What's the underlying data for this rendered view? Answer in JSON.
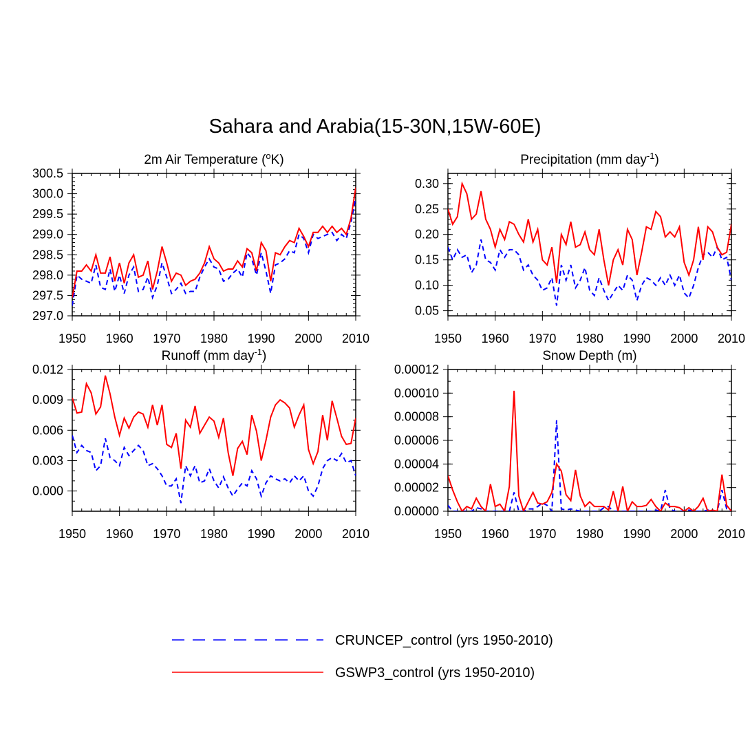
{
  "title": "Sahara and Arabia(15-30N,15W-60E)",
  "colors": {
    "cruncep": "#0000ff",
    "gswp3": "#ff0000",
    "axis": "#000000"
  },
  "legend": [
    {
      "label": "CRUNCEP_control (yrs 1950-2010)",
      "style": "dashed",
      "color": "#0000ff"
    },
    {
      "label": "GSWP3_control (yrs 1950-2010)",
      "style": "solid",
      "color": "#ff0000"
    }
  ],
  "chart_data": [
    {
      "type": "line",
      "title": "2m Air Temperature (°K)",
      "title_parts": [
        "2m Air Temperature (",
        "o",
        "K)"
      ],
      "xlim": [
        1950,
        2010
      ],
      "ylim": [
        297.0,
        300.5
      ],
      "xticks": [
        1950,
        1960,
        1970,
        1980,
        1990,
        2000,
        2010
      ],
      "yticks": [
        297.0,
        297.5,
        298.0,
        298.5,
        299.0,
        299.5,
        300.0,
        300.5
      ],
      "ytick_labels": [
        "297.0",
        "297.5",
        "298.0",
        "298.5",
        "299.0",
        "299.5",
        "300.0",
        "300.5"
      ],
      "yminor": 0.1,
      "x_start": 1950,
      "series": [
        {
          "name": "CRUNCEP_control",
          "values": [
            297.25,
            298.0,
            297.9,
            297.85,
            297.8,
            298.25,
            297.7,
            297.65,
            298.15,
            297.6,
            298.0,
            297.55,
            298.0,
            298.2,
            297.6,
            297.65,
            297.95,
            297.45,
            297.75,
            298.3,
            297.95,
            297.55,
            297.65,
            297.8,
            297.55,
            297.6,
            297.6,
            297.95,
            298.2,
            298.4,
            298.2,
            298.15,
            297.85,
            297.9,
            298.05,
            298.15,
            297.95,
            298.55,
            298.4,
            298.0,
            298.55,
            298.1,
            297.55,
            298.25,
            298.3,
            298.4,
            298.6,
            298.55,
            299.0,
            298.9,
            298.55,
            299.0,
            298.9,
            298.95,
            299.0,
            299.05,
            298.85,
            299.0,
            298.9,
            299.3,
            299.9
          ]
        },
        {
          "name": "GSWP3_control",
          "values": [
            297.45,
            298.1,
            298.1,
            298.25,
            298.1,
            298.5,
            298.05,
            298.05,
            298.45,
            297.85,
            298.3,
            297.8,
            298.3,
            298.5,
            297.95,
            298.0,
            298.35,
            297.65,
            298.1,
            298.7,
            298.3,
            297.85,
            298.05,
            298.0,
            297.75,
            297.85,
            297.9,
            298.05,
            298.3,
            298.7,
            298.4,
            298.3,
            298.1,
            298.15,
            298.15,
            298.35,
            298.2,
            298.65,
            298.55,
            298.1,
            298.8,
            298.6,
            297.85,
            298.55,
            298.5,
            298.7,
            298.85,
            298.8,
            299.15,
            298.95,
            298.7,
            299.05,
            299.05,
            299.2,
            299.05,
            299.2,
            299.05,
            299.15,
            299.0,
            299.4,
            300.15
          ]
        }
      ]
    },
    {
      "type": "line",
      "title": "Precipitation (mm day-1)",
      "title_parts": [
        "Precipitation (mm day",
        "-1",
        ")"
      ],
      "xlim": [
        1950,
        2010
      ],
      "ylim": [
        0.04,
        0.32
      ],
      "xticks": [
        1950,
        1960,
        1970,
        1980,
        1990,
        2000,
        2010
      ],
      "yticks": [
        0.05,
        0.1,
        0.15,
        0.2,
        0.25,
        0.3
      ],
      "ytick_labels": [
        "0.05",
        "0.10",
        "0.15",
        "0.20",
        "0.25",
        "0.30"
      ],
      "yminor": 0.01,
      "x_start": 1950,
      "series": [
        {
          "name": "CRUNCEP_control",
          "values": [
            0.175,
            0.15,
            0.17,
            0.155,
            0.16,
            0.125,
            0.14,
            0.19,
            0.15,
            0.145,
            0.13,
            0.17,
            0.155,
            0.17,
            0.17,
            0.16,
            0.13,
            0.14,
            0.12,
            0.11,
            0.09,
            0.095,
            0.115,
            0.06,
            0.14,
            0.11,
            0.14,
            0.095,
            0.11,
            0.135,
            0.09,
            0.08,
            0.115,
            0.09,
            0.07,
            0.085,
            0.1,
            0.09,
            0.12,
            0.11,
            0.07,
            0.1,
            0.115,
            0.11,
            0.1,
            0.115,
            0.1,
            0.12,
            0.1,
            0.12,
            0.085,
            0.075,
            0.1,
            0.135,
            0.16,
            0.165,
            0.155,
            0.175,
            0.15,
            0.155,
            0.11
          ]
        },
        {
          "name": "GSWP3_control",
          "values": [
            0.25,
            0.22,
            0.235,
            0.3,
            0.28,
            0.23,
            0.24,
            0.285,
            0.23,
            0.21,
            0.175,
            0.21,
            0.19,
            0.225,
            0.22,
            0.2,
            0.185,
            0.23,
            0.185,
            0.21,
            0.15,
            0.14,
            0.175,
            0.105,
            0.2,
            0.18,
            0.225,
            0.175,
            0.18,
            0.205,
            0.17,
            0.16,
            0.21,
            0.15,
            0.1,
            0.15,
            0.17,
            0.14,
            0.21,
            0.19,
            0.12,
            0.165,
            0.215,
            0.21,
            0.245,
            0.235,
            0.195,
            0.205,
            0.195,
            0.215,
            0.145,
            0.12,
            0.15,
            0.215,
            0.15,
            0.215,
            0.205,
            0.175,
            0.16,
            0.165,
            0.22
          ]
        }
      ]
    },
    {
      "type": "line",
      "title": "Runoff (mm day-1)",
      "title_parts": [
        "Runoff (mm day",
        "-1",
        ")"
      ],
      "xlim": [
        1950,
        2010
      ],
      "ylim": [
        -0.002,
        0.012
      ],
      "xticks": [
        1950,
        1960,
        1970,
        1980,
        1990,
        2000,
        2010
      ],
      "yticks": [
        0.0,
        0.003,
        0.006,
        0.009,
        0.012
      ],
      "ytick_labels": [
        "0.000",
        "0.003",
        "0.006",
        "0.009",
        "0.012"
      ],
      "yminor": 0.001,
      "x_start": 1950,
      "series": [
        {
          "name": "CRUNCEP_control",
          "values": [
            0.0055,
            0.0038,
            0.0045,
            0.004,
            0.0038,
            0.002,
            0.0025,
            0.0052,
            0.0033,
            0.003,
            0.0025,
            0.0043,
            0.0035,
            0.004,
            0.0045,
            0.004,
            0.0025,
            0.0027,
            0.0022,
            0.0015,
            0.0005,
            0.0005,
            0.0012,
            -0.0012,
            0.0025,
            0.0015,
            0.0025,
            0.0008,
            0.001,
            0.0022,
            0.001,
            0.0003,
            0.0014,
            0.0003,
            -0.0005,
            0.0002,
            0.0008,
            0.0005,
            0.002,
            0.0012,
            -0.0005,
            0.0008,
            0.0015,
            0.0012,
            0.001,
            0.0012,
            0.0008,
            0.0015,
            0.001,
            0.0015,
            0.0,
            -0.0005,
            0.0005,
            0.0022,
            0.003,
            0.0033,
            0.003,
            0.0037,
            0.0028,
            0.003,
            0.0015
          ]
        },
        {
          "name": "GSWP3_control",
          "values": [
            0.0092,
            0.0077,
            0.0078,
            0.0106,
            0.0097,
            0.0076,
            0.0083,
            0.0114,
            0.0096,
            0.0073,
            0.0055,
            0.0072,
            0.0062,
            0.0073,
            0.0078,
            0.0076,
            0.0063,
            0.0085,
            0.0065,
            0.0085,
            0.0046,
            0.0043,
            0.0057,
            0.0022,
            0.007,
            0.0063,
            0.0084,
            0.0057,
            0.0065,
            0.0073,
            0.0069,
            0.0053,
            0.0072,
            0.0038,
            0.0015,
            0.0042,
            0.0049,
            0.0036,
            0.0075,
            0.0059,
            0.003,
            0.005,
            0.0073,
            0.0085,
            0.009,
            0.0087,
            0.0082,
            0.0063,
            0.0075,
            0.0085,
            0.0041,
            0.0027,
            0.0039,
            0.0075,
            0.005,
            0.0089,
            0.0072,
            0.0054,
            0.0046,
            0.0047,
            0.0072
          ]
        }
      ]
    },
    {
      "type": "line",
      "title": "Snow Depth (m)",
      "title_parts": [
        "Snow Depth (m)",
        "",
        ""
      ],
      "xlim": [
        1950,
        2010
      ],
      "ylim": [
        0.0,
        0.00012
      ],
      "xticks": [
        1950,
        1960,
        1970,
        1980,
        1990,
        2000,
        2010
      ],
      "yticks": [
        0.0,
        2e-05,
        4e-05,
        6e-05,
        8e-05,
        0.0001,
        0.00012
      ],
      "ytick_labels": [
        "0.00000",
        "0.00002",
        "0.00004",
        "0.00006",
        "0.00008",
        "0.00010",
        "0.00012"
      ],
      "yminor": 1e-05,
      "x_start": 1950,
      "series": [
        {
          "name": "CRUNCEP_control",
          "values": [
            5e-06,
            0.0,
            0.0,
            0.0,
            0.0,
            0.0,
            3e-06,
            2e-06,
            0.0,
            0.0,
            0.0,
            0.0,
            0.0,
            0.0,
            1.6e-05,
            0.0,
            0.0,
            2e-06,
            2e-06,
            4e-06,
            7e-06,
            5e-06,
            0.0,
            7.7e-05,
            2e-06,
            1e-06,
            2e-06,
            1e-06,
            0.0,
            0.0,
            0.0,
            0.0,
            0.0,
            3e-06,
            4e-06,
            0.0,
            0.0,
            0.0,
            0.0,
            0.0,
            0.0,
            0.0,
            0.0,
            0.0,
            1e-06,
            0.0,
            1.8e-05,
            2e-06,
            0.0,
            0.0,
            0.0,
            1e-06,
            0.0,
            0.0,
            0.0,
            1e-06,
            0.0,
            0.0,
            1.8e-05,
            2e-06,
            0.0
          ]
        },
        {
          "name": "GSWP3_control",
          "values": [
            3e-05,
            1.8e-05,
            8e-06,
            0.0,
            4e-06,
            2e-06,
            1.1e-05,
            4e-06,
            0.0,
            2.3e-05,
            4e-06,
            6e-06,
            0.0,
            2.1e-05,
            0.000102,
            1.3e-05,
            0.0,
            8e-06,
            1.6e-05,
            7e-06,
            6e-06,
            8e-06,
            1.6e-05,
            4e-05,
            3.4e-05,
            1.4e-05,
            9e-06,
            3.5e-05,
            1.3e-05,
            4e-06,
            8e-06,
            4e-06,
            4e-06,
            4e-06,
            1e-06,
            1.7e-05,
            0.0,
            2.1e-05,
            0.0,
            8e-06,
            4e-06,
            4e-06,
            5e-06,
            1e-05,
            4e-06,
            0.0,
            7e-06,
            4e-06,
            4e-06,
            3e-06,
            0.0,
            3e-06,
            0.0,
            4e-06,
            1.1e-05,
            0.0,
            1e-06,
            0.0,
            3.1e-05,
            5e-06,
            0.0
          ]
        }
      ]
    }
  ]
}
